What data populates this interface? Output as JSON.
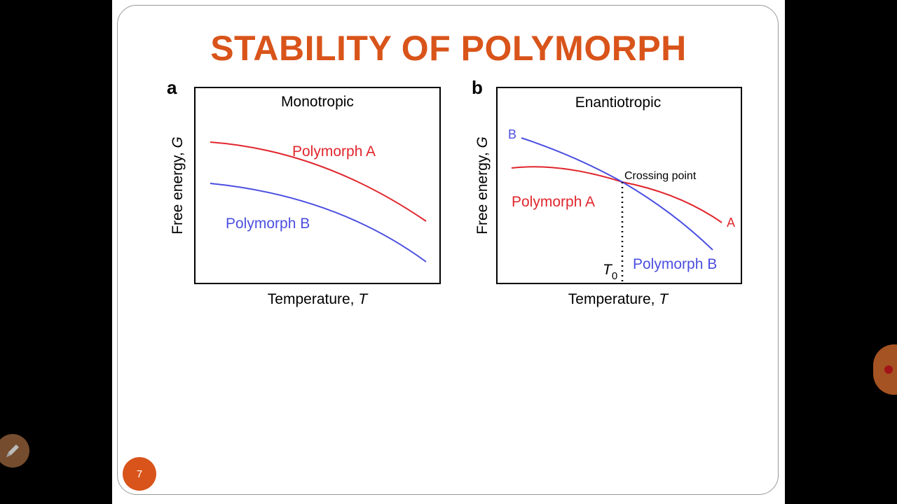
{
  "slide": {
    "title": "STABILITY OF POLYMORPH",
    "page_number": "7"
  },
  "figure": {
    "ylabel_text": "Free energy, ",
    "ylabel_var": "G",
    "xlabel_text": "Temperature, ",
    "xlabel_var": "T",
    "panel_a": {
      "letter": "a",
      "title": "Monotropic",
      "label_a": "Polymorph A",
      "label_b": "Polymorph B"
    },
    "panel_b": {
      "letter": "b",
      "title": "Enantiotropic",
      "label_a": "Polymorph A",
      "label_b": "Polymorph B",
      "end_label_a": "A",
      "end_label_b": "B",
      "crossing": "Crossing point",
      "t0_var": "T",
      "t0_sub": "0"
    }
  },
  "colors": {
    "title": "#d9541a",
    "polymorph_a": "#e0262d",
    "polymorph_b": "#4b4fe0"
  },
  "icons": {
    "pen": "pen-icon",
    "record": "record-icon"
  }
}
